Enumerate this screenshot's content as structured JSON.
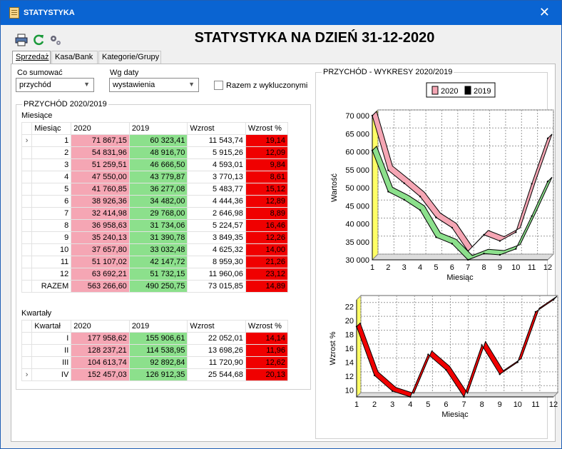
{
  "window": {
    "title": "STATYSTYKA",
    "close_icon": "close-icon"
  },
  "toolbar": {
    "print_icon": "printer-icon",
    "refresh_icon": "refresh-icon",
    "settings_icon": "gears-icon"
  },
  "main_title": "STATYSTYKA NA DZIEŃ 31-12-2020",
  "tabs": [
    {
      "label": "Sprzedaż",
      "active": true
    },
    {
      "label": "Kasa/Bank",
      "active": false
    },
    {
      "label": "Kategorie/Grupy",
      "active": false
    }
  ],
  "controls": {
    "sum_label": "Co sumować",
    "sum_value": "przychód",
    "date_label": "Wg daty",
    "date_value": "wystawienia",
    "excluded_label": "Razem z wykluczonymi"
  },
  "income_group": {
    "title": "PRZYCHÓD 2020/2019",
    "months_label": "Miesiące",
    "months_headers": [
      "Miesiąc",
      "2020",
      "2019",
      "Wzrost",
      "Wzrost %"
    ],
    "months_rows": [
      [
        "1",
        "71 867,15",
        "60 323,41",
        "11 543,74",
        "19,14"
      ],
      [
        "2",
        "54 831,96",
        "48 916,70",
        "5 915,26",
        "12,09"
      ],
      [
        "3",
        "51 259,51",
        "46 666,50",
        "4 593,01",
        "9,84"
      ],
      [
        "4",
        "47 550,00",
        "43 779,87",
        "3 770,13",
        "8,61"
      ],
      [
        "5",
        "41 760,85",
        "36 277,08",
        "5 483,77",
        "15,12"
      ],
      [
        "6",
        "38 926,36",
        "34 482,00",
        "4 444,36",
        "12,89"
      ],
      [
        "7",
        "32 414,98",
        "29 768,00",
        "2 646,98",
        "8,89"
      ],
      [
        "8",
        "36 958,63",
        "31 734,06",
        "5 224,57",
        "16,46"
      ],
      [
        "9",
        "35 240,13",
        "31 390,78",
        "3 849,35",
        "12,26"
      ],
      [
        "10",
        "37 657,80",
        "33 032,48",
        "4 625,32",
        "14,00"
      ],
      [
        "11",
        "51 107,02",
        "42 147,72",
        "8 959,30",
        "21,26"
      ],
      [
        "12",
        "63 692,21",
        "51 732,15",
        "11 960,06",
        "23,12"
      ]
    ],
    "months_total": [
      "RAZEM",
      "563 266,60",
      "490 250,75",
      "73 015,85",
      "14,89"
    ],
    "quarters_label": "Kwartały",
    "quarters_headers": [
      "Kwartał",
      "2020",
      "2019",
      "Wzrost",
      "Wzrost %"
    ],
    "quarters_rows": [
      [
        "I",
        "177 958,62",
        "155 906,61",
        "22 052,01",
        "14,14"
      ],
      [
        "II",
        "128 237,21",
        "114 538,95",
        "13 698,26",
        "11,96"
      ],
      [
        "III",
        "104 613,74",
        "92 892,84",
        "11 720,90",
        "12,62"
      ],
      [
        "IV",
        "152 457,03",
        "126 912,35",
        "25 544,68",
        "20,13"
      ]
    ]
  },
  "charts_group_title": "PRZYCHÓD - WYKRESY 2020/2019",
  "colors": {
    "c2020": "#f5a6b4",
    "c2019": "#8ce08c",
    "pct_bg": "#f00000",
    "title_bar": "#0a64d2"
  },
  "chart_data": [
    {
      "type": "line",
      "title": "",
      "xlabel": "Miesiąc",
      "ylabel": "Wartość",
      "categories": [
        1,
        2,
        3,
        4,
        5,
        6,
        7,
        8,
        9,
        10,
        11,
        12
      ],
      "ylim": [
        30000,
        70000
      ],
      "yticks": [
        "30 000",
        "35 000",
        "40 000",
        "45 000",
        "50 000",
        "55 000",
        "60 000",
        "65 000",
        "70 000"
      ],
      "legend_position": "top",
      "grid": true,
      "series": [
        {
          "name": "2020",
          "color": "#f5a6b4",
          "values": [
            71867.15,
            54831.96,
            51259.51,
            47550.0,
            41760.85,
            38926.36,
            32414.98,
            36958.63,
            35240.13,
            37657.8,
            51107.02,
            63692.21
          ]
        },
        {
          "name": "2019",
          "color": "#8ce08c",
          "values": [
            60323.41,
            48916.7,
            46666.5,
            43779.87,
            36277.08,
            34482.0,
            29768.0,
            31734.06,
            31390.78,
            33032.48,
            42147.72,
            51732.15
          ]
        }
      ]
    },
    {
      "type": "line",
      "title": "",
      "xlabel": "Miesiąc",
      "ylabel": "Wzrost %",
      "categories": [
        1,
        2,
        3,
        4,
        5,
        6,
        7,
        8,
        9,
        10,
        11,
        12
      ],
      "ylim": [
        9,
        23
      ],
      "yticks": [
        "10",
        "12",
        "14",
        "16",
        "18",
        "20",
        "22"
      ],
      "grid": true,
      "series": [
        {
          "color": "#f00000",
          "values": [
            19.14,
            12.09,
            9.84,
            8.61,
            15.12,
            12.89,
            8.89,
            16.46,
            12.26,
            14.0,
            21.26,
            23.12
          ]
        }
      ]
    }
  ]
}
